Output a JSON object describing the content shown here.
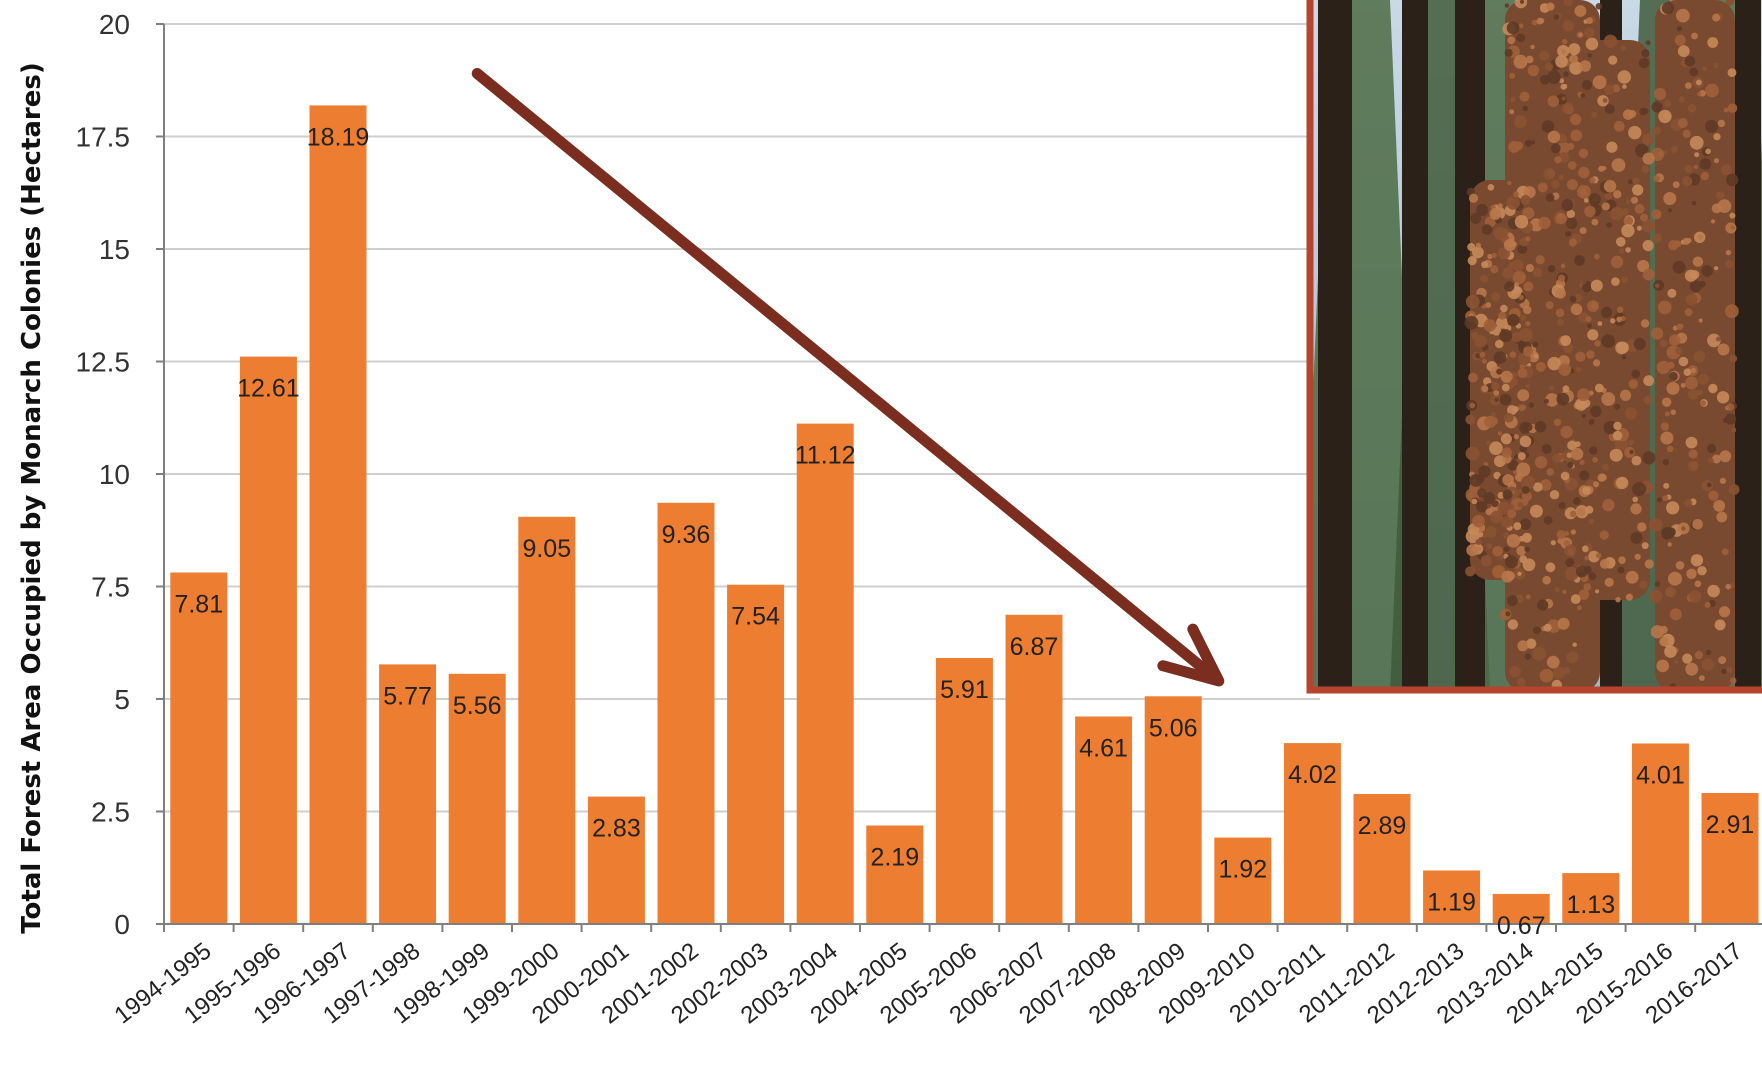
{
  "chart_data": {
    "type": "bar",
    "title": "",
    "xlabel": "",
    "ylabel": "Total Forest Area Occupied by Monarch Colonies (Hectares)",
    "ylim": [
      0,
      20
    ],
    "yticks": [
      0,
      2.5,
      5,
      7.5,
      10,
      12.5,
      15,
      17.5,
      20
    ],
    "ytick_labels": [
      "0",
      "2.5",
      "5",
      "7.5",
      "10",
      "12.5",
      "15",
      "17.5",
      "20"
    ],
    "grid": true,
    "legend": "none",
    "bar_color": "#ED7D31",
    "categories": [
      "1994-1995",
      "1995-1996",
      "1996-1997",
      "1997-1998",
      "1998-1999",
      "1999-2000",
      "2000-2001",
      "2001-2002",
      "2002-2003",
      "2003-2004",
      "2004-2005",
      "2005-2006",
      "2006-2007",
      "2007-2008",
      "2008-2009",
      "2009-2010",
      "2010-2011",
      "2011-2012",
      "2012-2013",
      "2013-2014",
      "2014-2015",
      "2015-2016",
      "2016-2017"
    ],
    "values": [
      7.81,
      12.61,
      18.19,
      5.77,
      5.56,
      9.05,
      2.83,
      9.36,
      7.54,
      11.12,
      2.19,
      5.91,
      6.87,
      4.61,
      5.06,
      1.92,
      4.02,
      2.89,
      1.19,
      0.67,
      1.13,
      4.01,
      2.91
    ],
    "value_labels": [
      "7.81",
      "12.61",
      "18.19",
      "5.77",
      "5.56",
      "9.05",
      "2.83",
      "9.36",
      "7.54",
      "11.12",
      "2.19",
      "5.91",
      "6.87",
      "4.61",
      "5.06",
      "1.92",
      "4.02",
      "2.89",
      "1.19",
      "0.67",
      "1.13",
      "4.01",
      "2.91"
    ],
    "annotation": {
      "type": "trend-arrow",
      "color": "#7B2E1F",
      "from_category": "1998-1999",
      "from_value": 18.9,
      "to_category": "2009-2010",
      "to_value": 5.4
    },
    "inset_photo": {
      "subject": "monarch-butterflies-on-fir-trees",
      "border_color": "#B5452E"
    }
  }
}
